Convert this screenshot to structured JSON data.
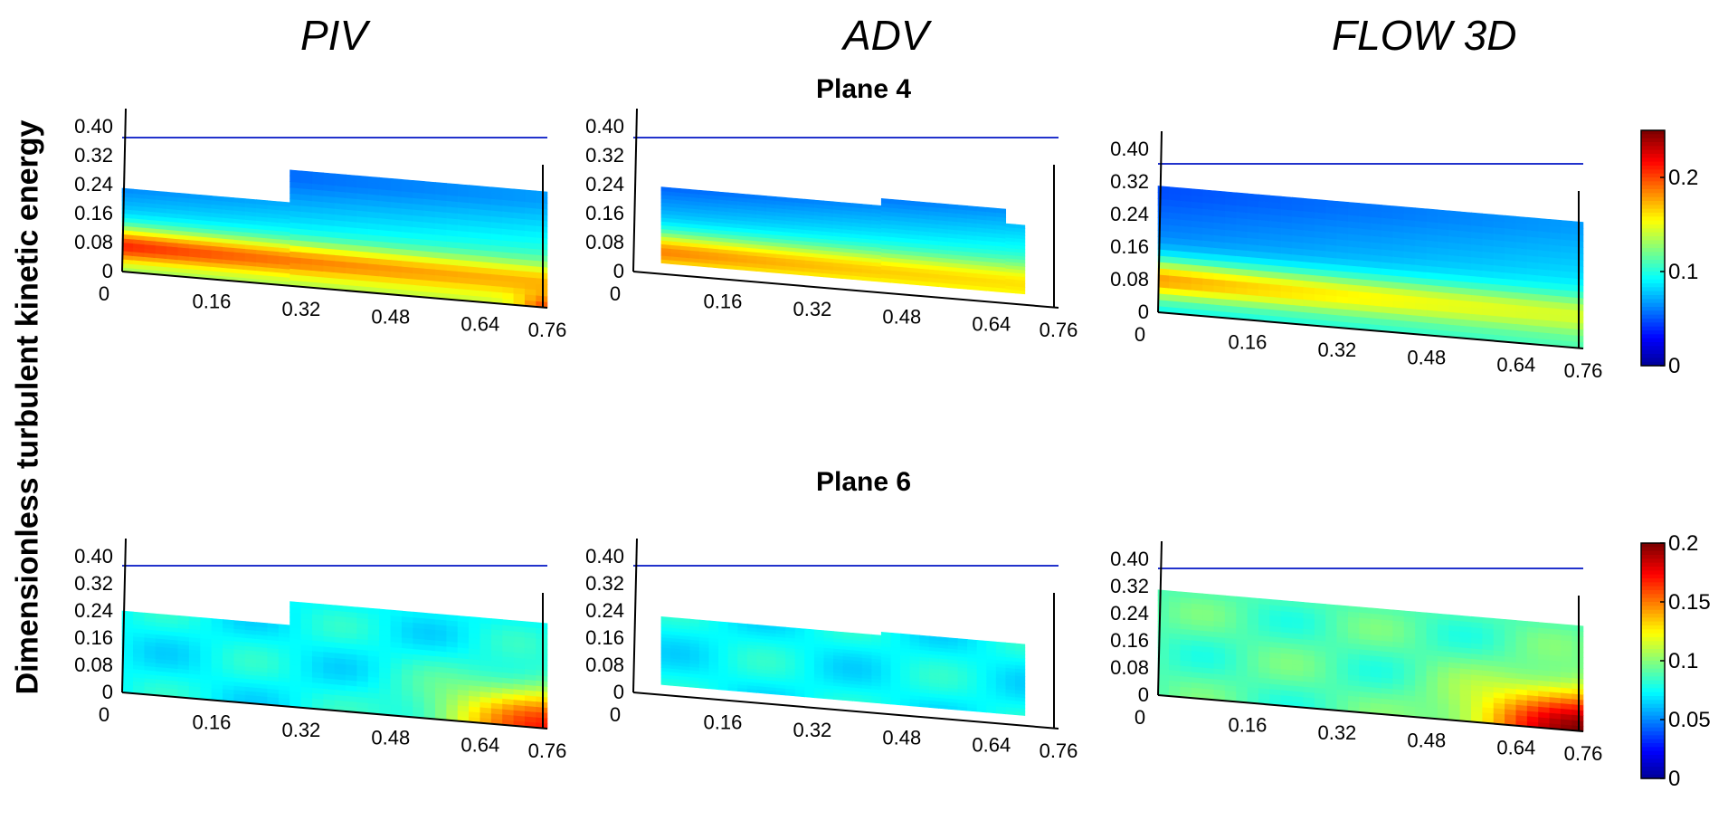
{
  "figure": {
    "ylabel": "Dimensionless turbulent kinetic energy",
    "columns": [
      "PIV",
      "ADV",
      "FLOW 3D"
    ],
    "planes": [
      "Plane 4",
      "Plane 6"
    ]
  },
  "colors": {
    "water_line": "#2233cc",
    "colormap": "jet",
    "jet_stops": [
      "#00008f",
      "#0000ff",
      "#0080ff",
      "#00ffff",
      "#80ff80",
      "#ffff00",
      "#ff8000",
      "#ff0000",
      "#800000"
    ]
  },
  "chart_data": [
    {
      "type": "heatmap",
      "method": "PIV",
      "plane": "Plane 4",
      "x_ticks": [
        "0",
        "0.16",
        "0.32",
        "0.48",
        "0.64",
        "0.76"
      ],
      "y_ticks": [
        "0",
        "0.08",
        "0.16",
        "0.24",
        "0.32",
        "0.40"
      ],
      "xlim": [
        0,
        0.76
      ],
      "ylim": [
        0,
        0.4
      ],
      "water_level": 0.32,
      "clim": [
        0,
        0.25
      ],
      "field": {
        "background": 0.12,
        "upper_region": 0.05,
        "jet_peak": 0.21,
        "jet_y": 0.07,
        "corner_peak": 0.2
      }
    },
    {
      "type": "heatmap",
      "method": "ADV",
      "plane": "Plane 4",
      "x_ticks": [
        "0",
        "0.16",
        "0.32",
        "0.48",
        "0.64",
        "0.76"
      ],
      "y_ticks": [
        "0",
        "0.08",
        "0.16",
        "0.24",
        "0.32",
        "0.40"
      ],
      "xlim": [
        0,
        0.76
      ],
      "ylim": [
        0,
        0.4
      ],
      "water_level": 0.32,
      "clim": [
        0,
        0.25
      ],
      "field": {
        "background": 0.12,
        "upper_region": 0.04,
        "jet_peak": 0.19,
        "jet_y": 0.06
      }
    },
    {
      "type": "heatmap",
      "method": "FLOW 3D",
      "plane": "Plane 4",
      "x_ticks": [
        "0",
        "0.16",
        "0.32",
        "0.48",
        "0.64",
        "0.76"
      ],
      "y_ticks": [
        "0",
        "0.08",
        "0.16",
        "0.24",
        "0.32",
        "0.40"
      ],
      "xlim": [
        0,
        0.76
      ],
      "ylim": [
        0,
        0.4
      ],
      "water_level": 0.32,
      "clim": [
        0,
        0.25
      ],
      "colorbar_ticks": [
        "0",
        "0.1",
        "0.2"
      ],
      "field": {
        "background": 0.09,
        "upper_region": 0.05,
        "jet_peak": 0.18,
        "jet_y": 0.08
      }
    },
    {
      "type": "heatmap",
      "method": "PIV",
      "plane": "Plane 6",
      "x_ticks": [
        "0",
        "0.16",
        "0.32",
        "0.48",
        "0.64",
        "0.76"
      ],
      "y_ticks": [
        "0",
        "0.08",
        "0.16",
        "0.24",
        "0.32",
        "0.40"
      ],
      "xlim": [
        0,
        0.76
      ],
      "ylim": [
        0,
        0.4
      ],
      "water_level": 0.32,
      "clim": [
        0,
        0.2
      ],
      "field": {
        "background": 0.075,
        "corner_peak": 0.17
      }
    },
    {
      "type": "heatmap",
      "method": "ADV",
      "plane": "Plane 6",
      "x_ticks": [
        "0",
        "0.16",
        "0.32",
        "0.48",
        "0.64",
        "0.76"
      ],
      "y_ticks": [
        "0",
        "0.08",
        "0.16",
        "0.24",
        "0.32",
        "0.40"
      ],
      "xlim": [
        0,
        0.76
      ],
      "ylim": [
        0,
        0.4
      ],
      "water_level": 0.32,
      "clim": [
        0,
        0.2
      ],
      "field": {
        "background": 0.075
      }
    },
    {
      "type": "heatmap",
      "method": "FLOW 3D",
      "plane": "Plane 6",
      "x_ticks": [
        "0",
        "0.16",
        "0.32",
        "0.48",
        "0.64",
        "0.76"
      ],
      "y_ticks": [
        "0",
        "0.08",
        "0.16",
        "0.24",
        "0.32",
        "0.40"
      ],
      "xlim": [
        0,
        0.76
      ],
      "ylim": [
        0,
        0.4
      ],
      "water_level": 0.32,
      "clim": [
        0,
        0.2
      ],
      "colorbar_ticks": [
        "0",
        "0.05",
        "0.1",
        "0.15",
        "0.2"
      ],
      "field": {
        "background": 0.09,
        "corner_peak": 0.2
      }
    }
  ]
}
